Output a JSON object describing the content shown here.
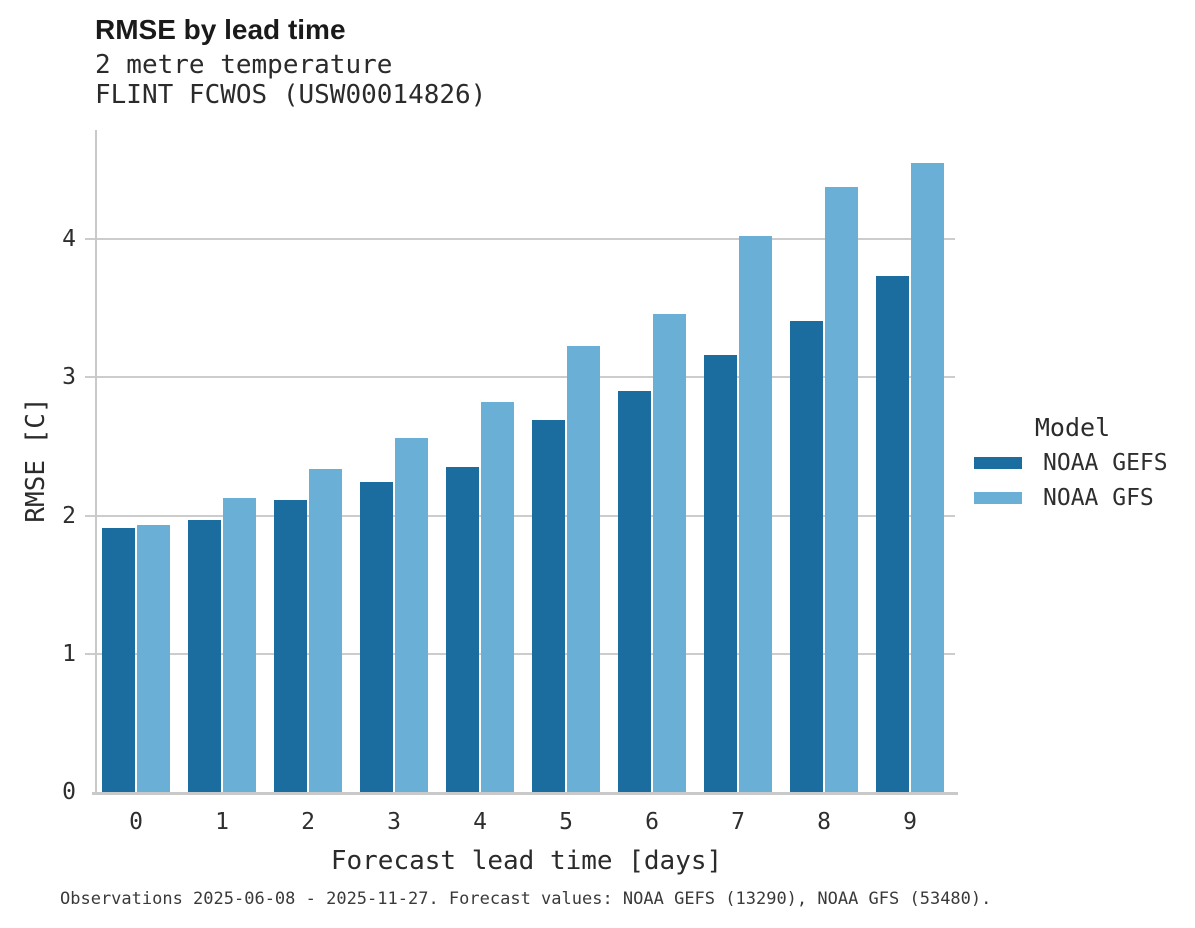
{
  "header": {
    "title": "RMSE by lead time",
    "subtitle1": "2 metre temperature",
    "subtitle2": "FLINT FCWOS (USW00014826)"
  },
  "chart_data": {
    "type": "bar",
    "title": "RMSE by lead time",
    "subtitle": [
      "2 metre temperature",
      "FLINT FCWOS (USW00014826)"
    ],
    "xlabel": "Forecast lead time [days]",
    "ylabel": "RMSE [C]",
    "categories": [
      "0",
      "1",
      "2",
      "3",
      "4",
      "5",
      "6",
      "7",
      "8",
      "9"
    ],
    "series": [
      {
        "name": "NOAA GEFS",
        "color": "#1a6d9e",
        "values": [
          1.91,
          1.97,
          2.11,
          2.24,
          2.35,
          2.69,
          2.9,
          3.16,
          3.41,
          3.73
        ]
      },
      {
        "name": "NOAA GFS",
        "color": "#6aafd6",
        "values": [
          1.93,
          2.13,
          2.34,
          2.56,
          2.82,
          3.23,
          3.46,
          4.02,
          4.38,
          4.55
        ]
      }
    ],
    "ylim": [
      0,
      4.79
    ],
    "yticks": [
      0,
      1,
      2,
      3,
      4
    ],
    "grid": true,
    "legend_title": "Model",
    "legend_position": "right"
  },
  "legend": {
    "title": "Model",
    "entries": [
      "NOAA GEFS",
      "NOAA GFS"
    ]
  },
  "footer": {
    "note": "Observations 2025-06-08 - 2025-11-27. Forecast values: NOAA GEFS (13290), NOAA GFS (53480)."
  },
  "colors": {
    "gefs_dark_blue": "#1a6d9e",
    "gfs_light_blue": "#6aafd6",
    "gridline_gray": "#cccccc",
    "text_dark": "#1a1a1a"
  }
}
